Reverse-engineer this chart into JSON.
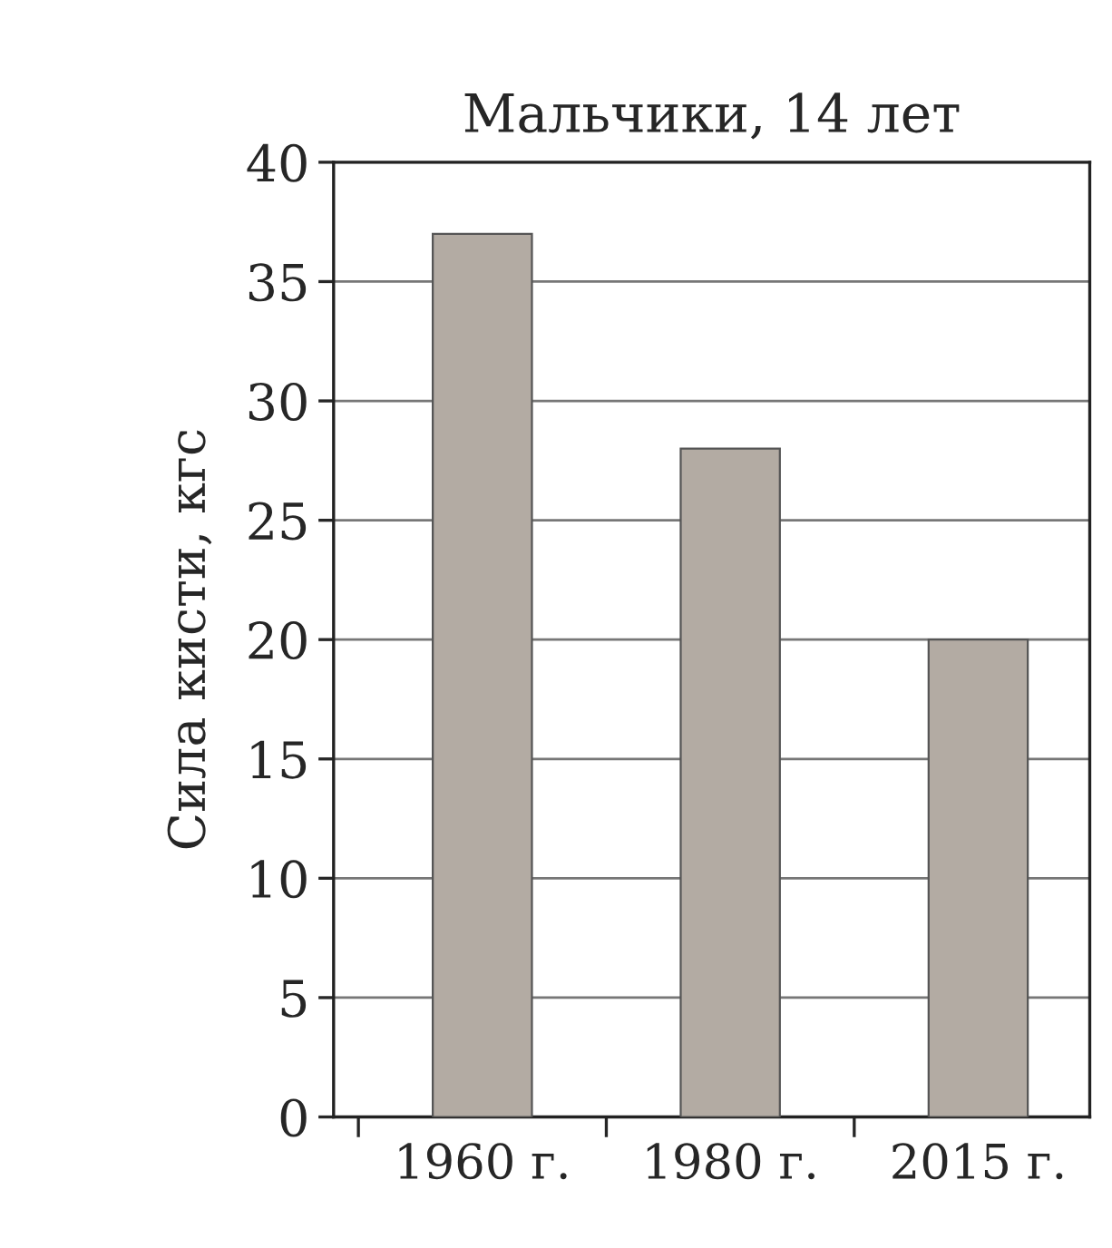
{
  "chart_data": {
    "type": "bar",
    "title": "Мальчики, 14 лет",
    "ylabel": "Сила кисти, кгс",
    "categories": [
      "1960 г.",
      "1980 г.",
      "2015 г."
    ],
    "values": [
      37,
      28,
      20
    ],
    "color": "#b3aba3",
    "ylim": [
      0,
      40
    ],
    "yticks": [
      0,
      5,
      10,
      15,
      20,
      25,
      30,
      35,
      40
    ],
    "grid": "y"
  }
}
